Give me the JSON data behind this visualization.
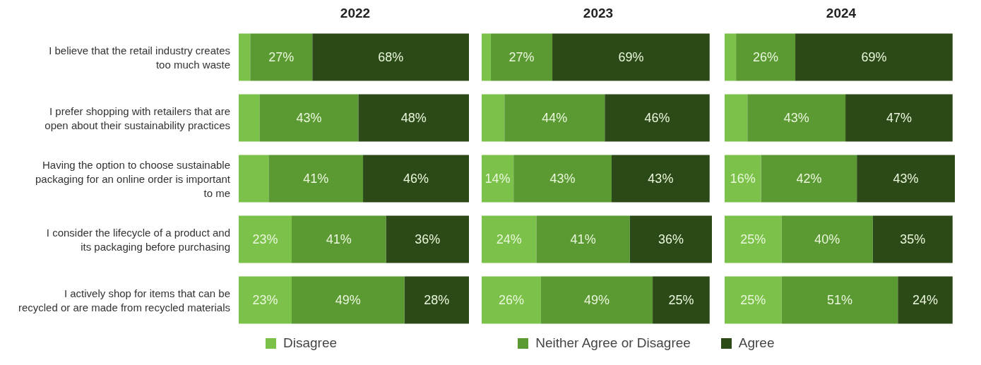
{
  "chart_data": [
    {
      "type": "bar",
      "orientation": "horizontal",
      "stacked": true,
      "title": "2022",
      "legend": "bottom",
      "tick_labels": "y",
      "xlim": [
        0,
        100
      ],
      "categories": [
        "I believe that the retail industry creates too much waste",
        "I prefer shopping with retailers that are open about their sustainability practices",
        "Having the option to choose sustainable packaging for an online order is important to me",
        "I consider the lifecycle of a product and its packaging before purchasing",
        "I actively shop for items that can be recycled or are made from recycled materials"
      ],
      "series": [
        {
          "name": "Disagree",
          "color": "#7cc24a",
          "values": [
            5,
            9,
            13,
            23,
            23
          ],
          "value_labels": [
            null,
            null,
            null,
            "23%",
            "23%"
          ]
        },
        {
          "name": "Neither Agree or Disagree",
          "color": "#5b9a33",
          "values": [
            27,
            43,
            41,
            41,
            49
          ],
          "value_labels": [
            "27%",
            "43%",
            "41%",
            "41%",
            "49%"
          ]
        },
        {
          "name": "Agree",
          "color": "#2c4a17",
          "values": [
            68,
            48,
            46,
            36,
            28
          ],
          "value_labels": [
            "68%",
            "48%",
            "46%",
            "36%",
            "28%"
          ]
        }
      ]
    },
    {
      "type": "bar",
      "orientation": "horizontal",
      "stacked": true,
      "title": "2023",
      "tick_labels": false,
      "xlim": [
        0,
        101
      ],
      "series": [
        {
          "color": "#7cc24a",
          "values": [
            4,
            10,
            14,
            24,
            26
          ],
          "value_labels": [
            null,
            null,
            "14%",
            "24%",
            "26%"
          ]
        },
        {
          "color": "#5b9a33",
          "values": [
            27,
            44,
            43,
            41,
            49
          ],
          "value_labels": [
            "27%",
            "44%",
            "43%",
            "41%",
            "49%"
          ]
        },
        {
          "color": "#2c4a17",
          "values": [
            69,
            46,
            43,
            36,
            25
          ],
          "value_labels": [
            "69%",
            "46%",
            "43%",
            "36%",
            "25%"
          ]
        }
      ]
    },
    {
      "type": "bar",
      "orientation": "horizontal",
      "stacked": true,
      "title": "2024",
      "tick_labels": false,
      "xlim": [
        0,
        101
      ],
      "series": [
        {
          "color": "#7cc24a",
          "values": [
            5,
            10,
            16,
            25,
            25
          ],
          "value_labels": [
            null,
            null,
            "16%",
            "25%",
            "25%"
          ]
        },
        {
          "color": "#5b9a33",
          "values": [
            26,
            43,
            42,
            40,
            51
          ],
          "value_labels": [
            "26%",
            "43%",
            "42%",
            "40%",
            "51%"
          ]
        },
        {
          "color": "#2c4a17",
          "values": [
            69,
            47,
            43,
            35,
            24
          ],
          "value_labels": [
            "69%",
            "47%",
            "43%",
            "35%",
            "24%"
          ]
        }
      ]
    }
  ]
}
